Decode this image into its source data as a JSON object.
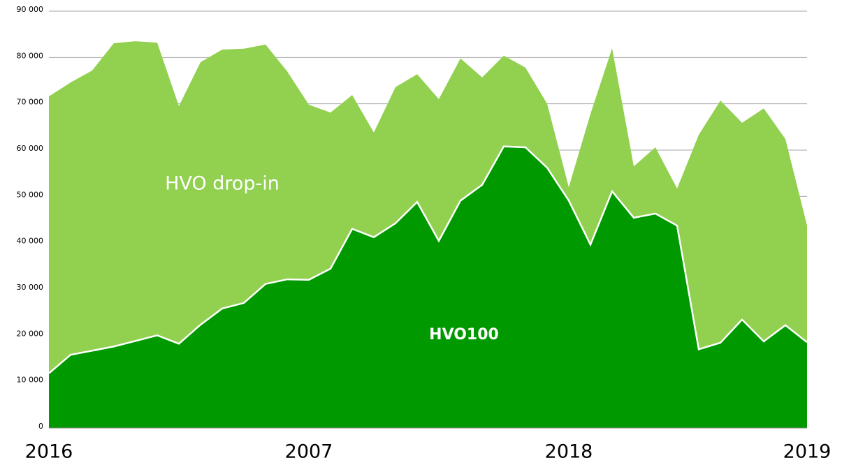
{
  "chart_data": {
    "type": "stacked_area",
    "categories": [
      "2016",
      null,
      null,
      null,
      null,
      null,
      null,
      null,
      null,
      null,
      null,
      null,
      "2007",
      null,
      null,
      null,
      null,
      null,
      null,
      null,
      null,
      null,
      null,
      null,
      "2018",
      null,
      null,
      null,
      null,
      null,
      null,
      null,
      null,
      null,
      null,
      "2019"
    ],
    "series": [
      {
        "name": "HVO100",
        "color": "#009900",
        "values": [
          11.8,
          15.8,
          16.7,
          17.6,
          18.8,
          20.0,
          18.2,
          22.3,
          25.8,
          27.0,
          31.1,
          32.1,
          32.0,
          34.4,
          43.0,
          41.2,
          44.2,
          48.8,
          40.4,
          49.1,
          52.5,
          60.8,
          60.6,
          56.2,
          49.1,
          39.6,
          51.1,
          45.4,
          46.3,
          43.7,
          17.0,
          18.4,
          23.4,
          18.7,
          22.2,
          18.5
        ]
      },
      {
        "name": "HVO drop-in",
        "color": "#92d050",
        "values": [
          59.8,
          58.8,
          60.5,
          65.5,
          64.7,
          63.2,
          51.3,
          56.7,
          55.9,
          54.9,
          51.7,
          44.9,
          37.8,
          33.7,
          28.9,
          22.6,
          29.4,
          27.6,
          30.6,
          30.7,
          23.2,
          19.6,
          17.2,
          13.8,
          2.9,
          28.2,
          30.9,
          11.1,
          14.3,
          8.0,
          46.3,
          52.3,
          42.5,
          50.3,
          40.2,
          25.2
        ]
      }
    ],
    "ylim": [
      0,
      90
    ],
    "yticks": [
      0,
      {
        "value": 10,
        "label": "10 000"
      },
      {
        "value": 20,
        "label": "20 000"
      },
      {
        "value": 30,
        "label": "30 000"
      },
      {
        "value": 40,
        "label": "40 000"
      },
      {
        "value": 50,
        "label": "50 000"
      },
      {
        "value": 60,
        "label": "60 000"
      },
      {
        "value": 70,
        "label": "70 000"
      },
      {
        "value": 80,
        "label": "80 000"
      },
      {
        "value": 90,
        "label": "90 000"
      }
    ],
    "grid": true
  }
}
